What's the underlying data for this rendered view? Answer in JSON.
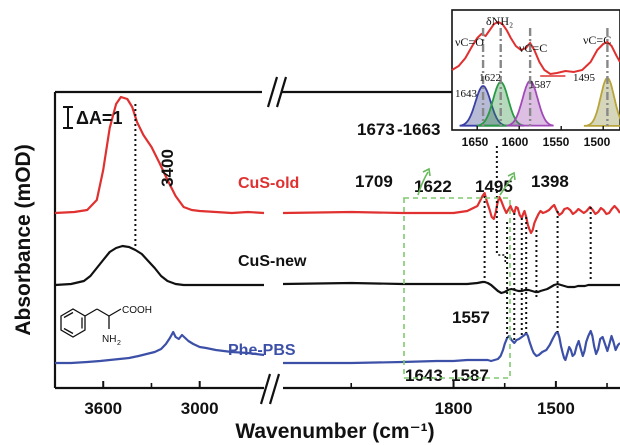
{
  "chart_data": {
    "type": "line",
    "xlabel": "Wavenumber (cm⁻¹)",
    "ylabel": "Absorbance (mOD)",
    "x_ticks": [
      "3600",
      "3000",
      "1800",
      "1500"
    ],
    "scale_bar": "ΔA=1",
    "series": [
      {
        "name": "CuS-old",
        "color": "#e03030",
        "segments": [
          [
            [
              3900,
              213
            ],
            [
              3780,
              212
            ],
            [
              3700,
              210
            ],
            [
              3640,
              200
            ],
            [
              3600,
              170
            ],
            [
              3560,
              128
            ],
            [
              3520,
              104
            ],
            [
              3490,
              97
            ],
            [
              3450,
              99
            ],
            [
              3420,
              107
            ],
            [
              3390,
              122
            ],
            [
              3350,
              135
            ],
            [
              3300,
              147
            ],
            [
              3250,
              163
            ],
            [
              3200,
              180
            ],
            [
              3150,
              196
            ],
            [
              3100,
              207
            ],
            [
              3050,
              210
            ],
            [
              3000,
              211
            ],
            [
              2900,
              212
            ],
            [
              2800,
              213
            ],
            [
              2700,
              212
            ],
            [
              2600,
              213
            ]
          ],
          [
            [
              2300,
              213
            ],
            [
              2100,
              212
            ],
            [
              1950,
              213
            ],
            [
              1850,
              213
            ],
            [
              1800,
              213
            ],
            [
              1760,
              211
            ],
            [
              1730,
              206
            ],
            [
              1715,
              196
            ],
            [
              1709,
              193
            ],
            [
              1702,
              202
            ],
            [
              1694,
              210
            ],
            [
              1688,
              217
            ],
            [
              1682,
              219
            ],
            [
              1676,
              212
            ],
            [
              1671,
              203
            ],
            [
              1666,
              197
            ],
            [
              1660,
              201
            ],
            [
              1652,
              208
            ],
            [
              1645,
              213
            ],
            [
              1640,
              210
            ],
            [
              1633,
              206
            ],
            [
              1628,
              210
            ],
            [
              1622,
              213
            ],
            [
              1617,
              207
            ],
            [
              1612,
              208
            ],
            [
              1606,
              215
            ],
            [
              1600,
              218
            ],
            [
              1596,
              214
            ],
            [
              1592,
              211
            ],
            [
              1587,
              217
            ],
            [
              1582,
              225
            ],
            [
              1578,
              229
            ],
            [
              1573,
              233
            ],
            [
              1568,
              230
            ],
            [
              1563,
              223
            ],
            [
              1558,
              219
            ],
            [
              1551,
              214
            ],
            [
              1545,
              211
            ],
            [
              1538,
              213
            ],
            [
              1530,
              212
            ],
            [
              1520,
              210
            ],
            [
              1512,
              207
            ],
            [
              1505,
              205
            ],
            [
              1497,
              211
            ],
            [
              1490,
              215
            ],
            [
              1482,
              213
            ],
            [
              1475,
              209
            ],
            [
              1466,
              208
            ],
            [
              1458,
              210
            ],
            [
              1450,
              214
            ],
            [
              1442,
              212
            ],
            [
              1434,
              209
            ],
            [
              1426,
              211
            ],
            [
              1418,
              213
            ],
            [
              1410,
              211
            ],
            [
              1400,
              207
            ],
            [
              1392,
              210
            ],
            [
              1384,
              214
            ],
            [
              1376,
              212
            ],
            [
              1368,
              208
            ],
            [
              1360,
              210
            ],
            [
              1352,
              214
            ],
            [
              1344,
              213
            ],
            [
              1336,
              209
            ],
            [
              1328,
              206
            ],
            [
              1320,
              209
            ],
            [
              1312,
              213
            ]
          ]
        ]
      },
      {
        "name": "CuS-new",
        "color": "#111111",
        "segments": [
          [
            [
              3900,
              285
            ],
            [
              3800,
              284
            ],
            [
              3720,
              281
            ],
            [
              3680,
              276
            ],
            [
              3640,
              268
            ],
            [
              3600,
              260
            ],
            [
              3560,
              252
            ],
            [
              3520,
              248
            ],
            [
              3480,
              246
            ],
            [
              3440,
              247
            ],
            [
              3400,
              250
            ],
            [
              3360,
              254
            ],
            [
              3320,
              261
            ],
            [
              3280,
              268
            ],
            [
              3240,
              276
            ],
            [
              3200,
              281
            ],
            [
              3150,
              284
            ],
            [
              3100,
              285
            ],
            [
              3000,
              285
            ],
            [
              2800,
              285
            ],
            [
              2600,
              285
            ]
          ],
          [
            [
              2300,
              284
            ],
            [
              2100,
              283
            ],
            [
              1950,
              284
            ],
            [
              1850,
              284
            ],
            [
              1800,
              284
            ],
            [
              1760,
              284
            ],
            [
              1730,
              283
            ],
            [
              1715,
              282
            ],
            [
              1709,
              282
            ],
            [
              1700,
              283
            ],
            [
              1690,
              285
            ],
            [
              1680,
              288
            ],
            [
              1670,
              291
            ],
            [
              1660,
              293
            ],
            [
              1650,
              292
            ],
            [
              1640,
              290
            ],
            [
              1630,
              289
            ],
            [
              1620,
              290
            ],
            [
              1610,
              291
            ],
            [
              1600,
              291
            ],
            [
              1590,
              290
            ],
            [
              1580,
              290
            ],
            [
              1570,
              291
            ],
            [
              1560,
              292
            ],
            [
              1552,
              292
            ],
            [
              1545,
              291
            ],
            [
              1535,
              290
            ],
            [
              1525,
              289
            ],
            [
              1515,
              287
            ],
            [
              1505,
              285
            ],
            [
              1495,
              284
            ],
            [
              1485,
              285
            ],
            [
              1475,
              286
            ],
            [
              1465,
              287
            ],
            [
              1455,
              287
            ],
            [
              1445,
              287
            ],
            [
              1435,
              286
            ],
            [
              1425,
              286
            ],
            [
              1415,
              286
            ],
            [
              1405,
              285
            ],
            [
              1395,
              285
            ],
            [
              1385,
              285
            ],
            [
              1375,
              285
            ],
            [
              1365,
              285
            ],
            [
              1355,
              285
            ],
            [
              1345,
              285
            ],
            [
              1335,
              285
            ],
            [
              1325,
              285
            ],
            [
              1312,
              285
            ]
          ]
        ]
      },
      {
        "name": "Phe-PBS",
        "color": "#3d50a8",
        "segments": [
          [
            [
              3900,
              363
            ],
            [
              3800,
              363
            ],
            [
              3700,
              362
            ],
            [
              3620,
              361
            ],
            [
              3560,
              360
            ],
            [
              3500,
              359
            ],
            [
              3440,
              358
            ],
            [
              3380,
              356
            ],
            [
              3330,
              354
            ],
            [
              3280,
              352
            ],
            [
              3240,
              349
            ],
            [
              3210,
              344
            ],
            [
              3185,
              338
            ],
            [
              3165,
              332
            ],
            [
              3150,
              337
            ],
            [
              3130,
              339
            ],
            [
              3110,
              335
            ],
            [
              3090,
              338
            ],
            [
              3070,
              341
            ],
            [
              3040,
              344
            ],
            [
              3000,
              347
            ],
            [
              2960,
              348
            ],
            [
              2900,
              350
            ],
            [
              2800,
              352
            ],
            [
              2700,
              353
            ],
            [
              2600,
              355
            ]
          ],
          [
            [
              2300,
              363
            ],
            [
              2100,
              363
            ],
            [
              1950,
              362
            ],
            [
              1850,
              361
            ],
            [
              1800,
              361
            ],
            [
              1760,
              360
            ],
            [
              1730,
              360
            ],
            [
              1715,
              360
            ],
            [
              1709,
              360
            ],
            [
              1700,
              360
            ],
            [
              1690,
              361
            ],
            [
              1680,
              360
            ],
            [
              1670,
              359
            ],
            [
              1662,
              356
            ],
            [
              1655,
              350
            ],
            [
              1650,
              344
            ],
            [
              1643,
              338
            ],
            [
              1637,
              336
            ],
            [
              1630,
              340
            ],
            [
              1622,
              343
            ],
            [
              1615,
              340
            ],
            [
              1608,
              339
            ],
            [
              1600,
              337
            ],
            [
              1592,
              335
            ],
            [
              1587,
              333
            ],
            [
              1582,
              336
            ],
            [
              1577,
              342
            ],
            [
              1570,
              349
            ],
            [
              1565,
              353
            ],
            [
              1557,
              356
            ],
            [
              1550,
              355
            ],
            [
              1540,
              352
            ],
            [
              1528,
              350
            ],
            [
              1518,
              345
            ],
            [
              1508,
              338
            ],
            [
              1500,
              333
            ],
            [
              1495,
              332
            ],
            [
              1490,
              337
            ],
            [
              1485,
              346
            ],
            [
              1480,
              353
            ],
            [
              1476,
              358
            ],
            [
              1472,
              360
            ],
            [
              1466,
              353
            ],
            [
              1461,
              347
            ],
            [
              1456,
              350
            ],
            [
              1451,
              356
            ],
            [
              1445,
              354
            ],
            [
              1439,
              346
            ],
            [
              1433,
              341
            ],
            [
              1427,
              349
            ],
            [
              1421,
              356
            ],
            [
              1416,
              351
            ],
            [
              1411,
              342
            ],
            [
              1405,
              336
            ],
            [
              1398,
              331
            ],
            [
              1393,
              336
            ],
            [
              1388,
              346
            ],
            [
              1382,
              354
            ],
            [
              1376,
              349
            ],
            [
              1370,
              339
            ],
            [
              1363,
              337
            ],
            [
              1356,
              344
            ],
            [
              1349,
              351
            ],
            [
              1343,
              344
            ],
            [
              1337,
              336
            ],
            [
              1331,
              342
            ],
            [
              1325,
              350
            ],
            [
              1318,
              345
            ],
            [
              1312,
              343
            ]
          ]
        ]
      }
    ],
    "peak_labels": [
      "3400",
      "1709",
      "1673",
      "-1663",
      "1622",
      "1495",
      "1398",
      "1557",
      "1643",
      "1587"
    ],
    "inset": {
      "x_ticks": [
        "1650",
        "1600",
        "1550",
        "1500"
      ],
      "band_labels": [
        "νC=O",
        "δNH₂",
        "νC=C",
        "νC=C"
      ],
      "band_values": [
        "1643",
        "1622",
        "1587",
        "1495"
      ]
    }
  }
}
